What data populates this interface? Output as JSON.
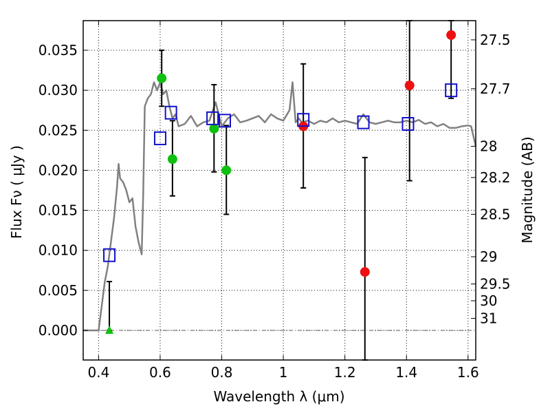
{
  "chart_data": {
    "type": "scatter",
    "xlabel": "Wavelength  λ (μm)",
    "ylabel": "Flux  Fν  ( μJy )",
    "ylabel_right": "Magnitude (AB)",
    "xlim": [
      0.35,
      1.625
    ],
    "ylim": [
      -0.0037,
      0.0387
    ],
    "grid": true,
    "x_ticks": [
      0.4,
      0.6,
      0.8,
      1.0,
      1.2,
      1.4,
      1.6
    ],
    "x_tick_labels": [
      "0.4",
      "0.6",
      "0.8",
      "1",
      "1.2",
      "1.4",
      "1.6"
    ],
    "y_ticks": [
      0.0,
      0.005,
      0.01,
      0.015,
      0.02,
      0.025,
      0.03,
      0.035
    ],
    "y_tick_labels": [
      "0.000",
      "0.005",
      "0.010",
      "0.015",
      "0.020",
      "0.025",
      "0.030",
      "0.035"
    ],
    "magnitude_ticks": [
      {
        "label": "27.5",
        "flux": 0.0363
      },
      {
        "label": "27.7",
        "flux": 0.0302
      },
      {
        "label": "28",
        "flux": 0.023
      },
      {
        "label": "28.2",
        "flux": 0.0191
      },
      {
        "label": "28.5",
        "flux": 0.0145
      },
      {
        "label": "29",
        "flux": 0.0092
      },
      {
        "label": "29.5",
        "flux": 0.0058
      },
      {
        "label": "30",
        "flux": 0.0037
      },
      {
        "label": "31",
        "flux": 0.0015
      }
    ],
    "colors": {
      "model": "#808080",
      "optical": "#10c010",
      "nir": "#ee1010",
      "model_flux": "#1010cc",
      "errorbar": "#000000",
      "zero_line": "#555555"
    },
    "model_sed": {
      "x": [
        0.35,
        0.4,
        0.41,
        0.42,
        0.43,
        0.44,
        0.45,
        0.46,
        0.465,
        0.47,
        0.48,
        0.49,
        0.5,
        0.51,
        0.52,
        0.53,
        0.54,
        0.545,
        0.55,
        0.56,
        0.57,
        0.58,
        0.59,
        0.6,
        0.61,
        0.62,
        0.63,
        0.64,
        0.65,
        0.66,
        0.68,
        0.7,
        0.72,
        0.74,
        0.76,
        0.78,
        0.8,
        0.82,
        0.84,
        0.86,
        0.88,
        0.9,
        0.92,
        0.94,
        0.96,
        0.98,
        1.0,
        1.02,
        1.03,
        1.04,
        1.05,
        1.06,
        1.08,
        1.1,
        1.12,
        1.14,
        1.16,
        1.18,
        1.2,
        1.22,
        1.24,
        1.26,
        1.28,
        1.3,
        1.32,
        1.34,
        1.36,
        1.38,
        1.4,
        1.42,
        1.44,
        1.46,
        1.48,
        1.5,
        1.52,
        1.54,
        1.56,
        1.58,
        1.6,
        1.61,
        1.625
      ],
      "y": [
        0.0,
        0.0,
        0.003,
        0.006,
        0.008,
        0.011,
        0.014,
        0.018,
        0.0208,
        0.019,
        0.0185,
        0.0175,
        0.016,
        0.0165,
        0.013,
        0.011,
        0.0095,
        0.017,
        0.028,
        0.029,
        0.0295,
        0.031,
        0.03,
        0.031,
        0.0295,
        0.03,
        0.028,
        0.0265,
        0.027,
        0.0255,
        0.0258,
        0.0268,
        0.0255,
        0.026,
        0.0262,
        0.0285,
        0.0255,
        0.0265,
        0.027,
        0.026,
        0.0262,
        0.0265,
        0.0268,
        0.026,
        0.027,
        0.0265,
        0.0262,
        0.0275,
        0.031,
        0.026,
        0.0265,
        0.026,
        0.0262,
        0.0258,
        0.0262,
        0.026,
        0.0265,
        0.026,
        0.0262,
        0.026,
        0.0258,
        0.027,
        0.026,
        0.0258,
        0.026,
        0.0262,
        0.026,
        0.026,
        0.0262,
        0.026,
        0.0263,
        0.0258,
        0.026,
        0.0255,
        0.0258,
        0.0253,
        0.0253,
        0.0255,
        0.0256,
        0.0255,
        0.023
      ]
    },
    "series": [
      {
        "marker": "circle-green",
        "x": [
          0.605,
          0.64,
          0.775,
          0.815
        ],
        "y": [
          0.0315,
          0.0214,
          0.0252,
          0.02
        ],
        "yerr_low": [
          0.028,
          0.0168,
          0.0198,
          0.0145
        ],
        "yerr_high": [
          0.035,
          0.0262,
          0.0307,
          0.0256
        ]
      },
      {
        "marker": "triangle-green",
        "x": [
          0.435
        ],
        "y": [
          0.0
        ],
        "yerr_low": [
          0.0
        ],
        "yerr_high": [
          0.0061
        ]
      },
      {
        "marker": "circle-red",
        "x": [
          1.065,
          1.265,
          1.41,
          1.545
        ],
        "y": [
          0.0255,
          0.0073,
          0.0306,
          0.0369
        ],
        "yerr_low": [
          0.0178,
          -0.0037,
          0.0187,
          0.029
        ],
        "yerr_high": [
          0.0333,
          0.0216,
          0.0387,
          0.0387
        ]
      },
      {
        "marker": "square-blue",
        "x": [
          0.435,
          0.6,
          0.635,
          0.77,
          0.81,
          1.065,
          1.26,
          1.405,
          1.545
        ],
        "y": [
          0.0094,
          0.024,
          0.0272,
          0.0265,
          0.0262,
          0.0263,
          0.026,
          0.0258,
          0.03
        ]
      }
    ]
  }
}
